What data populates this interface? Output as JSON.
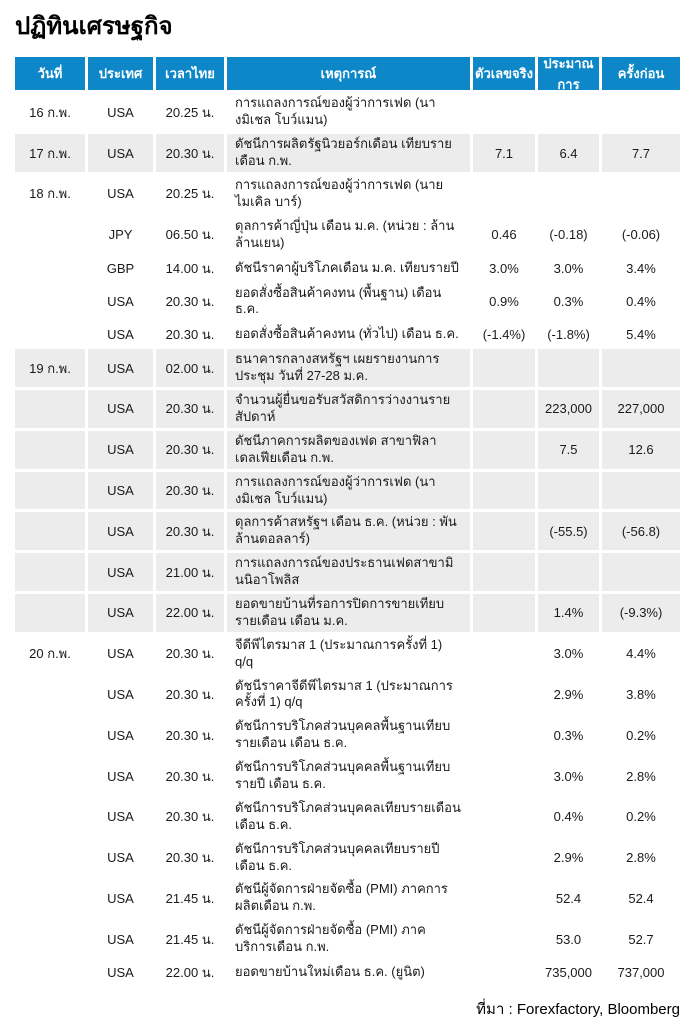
{
  "page": {
    "title": "ปฏิทินเศรษฐกิจ",
    "source_note": "ที่มา : Forexfactory, Bloomberg"
  },
  "colors": {
    "header_bg": "#0d87c8",
    "header_text": "#ffffff",
    "stripe_bg": "#ececec",
    "text": "#1a1a1a"
  },
  "table": {
    "columns": [
      {
        "key": "date",
        "label": "วันที่"
      },
      {
        "key": "country",
        "label": "ประเทศ"
      },
      {
        "key": "time",
        "label": "เวลาไทย"
      },
      {
        "key": "event",
        "label": "เหตุการณ์"
      },
      {
        "key": "actual",
        "label": "ตัวเลขจริง"
      },
      {
        "key": "forecast",
        "label": "ประมาณการ"
      },
      {
        "key": "previous",
        "label": "ครั้งก่อน"
      }
    ],
    "rows": [
      {
        "date": "16 ก.พ.",
        "country": "USA",
        "time": "20.25 น.",
        "event": "การแถลงการณ์ของผู้ว่าการเฟด (นางมิเชล โบว์แมน)",
        "actual": "",
        "forecast": "",
        "previous": "",
        "shaded": false
      },
      {
        "date": "17 ก.พ.",
        "country": "USA",
        "time": "20.30 น.",
        "event": "ดัชนีการผลิตรัฐนิวยอร์กเดือน เทียบรายเดือน ก.พ.",
        "actual": "7.1",
        "forecast": "6.4",
        "previous": "7.7",
        "shaded": true
      },
      {
        "date": "18 ก.พ.",
        "country": "USA",
        "time": "20.25 น.",
        "event": "การแถลงการณ์ของผู้ว่าการเฟด (นายไมเคิล บาร์)",
        "actual": "",
        "forecast": "",
        "previous": "",
        "shaded": false
      },
      {
        "date": "",
        "country": "JPY",
        "time": "06.50 น.",
        "event": "ดุลการค้าญี่ปุ่น เดือน ม.ค. (หน่วย : ล้านล้านเยน)",
        "actual": "0.46",
        "forecast": "(-0.18)",
        "previous": "(-0.06)",
        "shaded": false
      },
      {
        "date": "",
        "country": "GBP",
        "time": "14.00 น.",
        "event": "ดัชนีราคาผู้บริโภคเดือน ม.ค. เทียบรายปี",
        "actual": "3.0%",
        "forecast": "3.0%",
        "previous": "3.4%",
        "shaded": false
      },
      {
        "date": "",
        "country": "USA",
        "time": "20.30 น.",
        "event": "ยอดสั่งซื้อสินค้าคงทน (พื้นฐาน) เดือน ธ.ค.",
        "actual": "0.9%",
        "forecast": "0.3%",
        "previous": "0.4%",
        "shaded": false
      },
      {
        "date": "",
        "country": "USA",
        "time": "20.30 น.",
        "event": "ยอดสั่งซื้อสินค้าคงทน (ทั่วไป) เดือน ธ.ค.",
        "actual": "(-1.4%)",
        "forecast": "(-1.8%)",
        "previous": "5.4%",
        "shaded": false
      },
      {
        "date": "19 ก.พ.",
        "country": "USA",
        "time": "02.00 น.",
        "event": "ธนาคารกลางสหรัฐฯ เผยรายงานการประชุม วันที่ 27-28 ม.ค.",
        "actual": "",
        "forecast": "",
        "previous": "",
        "shaded": true
      },
      {
        "date": "",
        "country": "USA",
        "time": "20.30 น.",
        "event": "จำนวนผู้ยื่นขอรับสวัสดิการว่างงานรายสัปดาห์",
        "actual": "",
        "forecast": "223,000",
        "previous": "227,000",
        "shaded": true
      },
      {
        "date": "",
        "country": "USA",
        "time": "20.30 น.",
        "event": "ดัชนีภาคการผลิตของเฟด สาขาฟิลาเดลเฟียเดือน ก.พ.",
        "actual": "",
        "forecast": "7.5",
        "previous": "12.6",
        "shaded": true
      },
      {
        "date": "",
        "country": "USA",
        "time": "20.30 น.",
        "event": "การแถลงการณ์ของผู้ว่าการเฟด (นางมิเชล โบว์แมน)",
        "actual": "",
        "forecast": "",
        "previous": "",
        "shaded": true
      },
      {
        "date": "",
        "country": "USA",
        "time": "20.30 น.",
        "event": "ดุลการค้าสหรัฐฯ เดือน ธ.ค. (หน่วย : พันล้านดอลลาร์)",
        "actual": "",
        "forecast": "(-55.5)",
        "previous": "(-56.8)",
        "shaded": true
      },
      {
        "date": "",
        "country": "USA",
        "time": "21.00 น.",
        "event": "การแถลงการณ์ของประธานเฟดสาขามินนิอาโพลิส",
        "actual": "",
        "forecast": "",
        "previous": "",
        "shaded": true
      },
      {
        "date": "",
        "country": "USA",
        "time": "22.00 น.",
        "event": "ยอดขายบ้านที่รอการปิดการขายเทียบรายเดือน เดือน ม.ค.",
        "actual": "",
        "forecast": "1.4%",
        "previous": "(-9.3%)",
        "shaded": true
      },
      {
        "date": "20 ก.พ.",
        "country": "USA",
        "time": "20.30 น.",
        "event": "จีดีพีไตรมาส 1 (ประมาณการครั้งที่ 1) q/q",
        "actual": "",
        "forecast": "3.0%",
        "previous": "4.4%",
        "shaded": false
      },
      {
        "date": "",
        "country": "USA",
        "time": "20.30 น.",
        "event": "ดัชนีราคาจีดีพีไตรมาส 1 (ประมาณการครั้งที่ 1) q/q",
        "actual": "",
        "forecast": "2.9%",
        "previous": "3.8%",
        "shaded": false
      },
      {
        "date": "",
        "country": "USA",
        "time": "20.30 น.",
        "event": "ดัชนีการบริโภคส่วนบุคคลพื้นฐานเทียบรายเดือน เดือน ธ.ค.",
        "actual": "",
        "forecast": "0.3%",
        "previous": "0.2%",
        "shaded": false
      },
      {
        "date": "",
        "country": "USA",
        "time": "20.30 น.",
        "event": "ดัชนีการบริโภคส่วนบุคคลพื้นฐานเทียบรายปี เดือน ธ.ค.",
        "actual": "",
        "forecast": "3.0%",
        "previous": "2.8%",
        "shaded": false
      },
      {
        "date": "",
        "country": "USA",
        "time": "20.30 น.",
        "event": "ดัชนีการบริโภคส่วนบุคคลเทียบรายเดือน เดือน ธ.ค.",
        "actual": "",
        "forecast": "0.4%",
        "previous": "0.2%",
        "shaded": false
      },
      {
        "date": "",
        "country": "USA",
        "time": "20.30 น.",
        "event": "ดัชนีการบริโภคส่วนบุคคลเทียบรายปี เดือน ธ.ค.",
        "actual": "",
        "forecast": "2.9%",
        "previous": "2.8%",
        "shaded": false
      },
      {
        "date": "",
        "country": "USA",
        "time": "21.45 น.",
        "event": "ดัชนีผู้จัดการฝ่ายจัดซื้อ (PMI) ภาคการผลิตเดือน ก.พ.",
        "actual": "",
        "forecast": "52.4",
        "previous": "52.4",
        "shaded": false
      },
      {
        "date": "",
        "country": "USA",
        "time": "21.45 น.",
        "event": "ดัชนีผู้จัดการฝ่ายจัดซื้อ (PMI) ภาคบริการเดือน ก.พ.",
        "actual": "",
        "forecast": "53.0",
        "previous": "52.7",
        "shaded": false
      },
      {
        "date": "",
        "country": "USA",
        "time": "22.00 น.",
        "event": "ยอดขายบ้านใหม่เดือน ธ.ค. (ยูนิต)",
        "actual": "",
        "forecast": "735,000",
        "previous": "737,000",
        "shaded": false
      }
    ]
  }
}
